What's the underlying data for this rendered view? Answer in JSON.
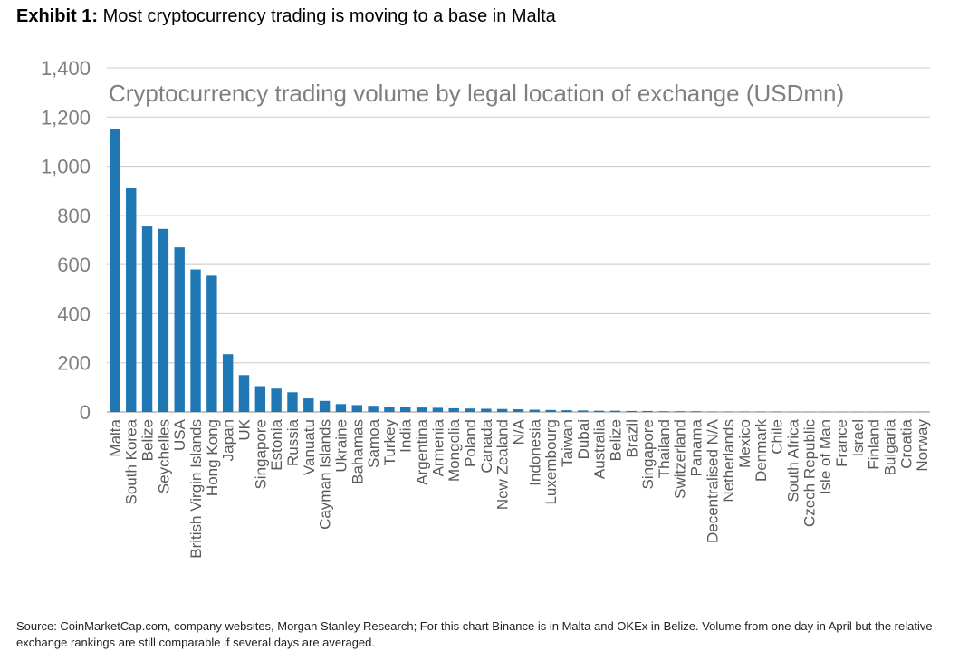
{
  "header": {
    "exhibit_label": "Exhibit 1:",
    "exhibit_title": "Most cryptocurrency trading is moving to a base in Malta"
  },
  "chart_data": {
    "type": "bar",
    "title": "Cryptocurrency trading volume by legal location of exchange (USDmn)",
    "xlabel": "",
    "ylabel": "",
    "ylim": [
      0,
      1400
    ],
    "yticks": [
      0,
      200,
      400,
      600,
      800,
      1000,
      1200,
      1400
    ],
    "ytick_labels": [
      "0",
      "200",
      "400",
      "600",
      "800",
      "1,000",
      "1,200",
      "1,400"
    ],
    "grid": true,
    "bar_color": "#1f77b4",
    "categories": [
      "Malta",
      "South Korea",
      "Belize",
      "Seychelles",
      "USA",
      "British Virgin Islands",
      "Hong Kong",
      "Japan",
      "UK",
      "Singapore",
      "Estonia",
      "Russia",
      "Vanuatu",
      "Cayman Islands",
      "Ukraine",
      "Bahamas",
      "Samoa",
      "Turkey",
      "India",
      "Argentina",
      "Armenia",
      "Mongolia",
      "Poland",
      "Canada",
      "New Zealand",
      "N/A",
      "Indonesia",
      "Luxembourg",
      "Taiwan",
      "Dubai",
      "Australia",
      "Belize",
      "Brazil",
      "Singapore",
      "Thailand",
      "Switzerland",
      "Panama",
      "Decentralised N/A",
      "Netherlands",
      "Mexico",
      "Denmark",
      "Chile",
      "South Africa",
      "Czech Republic",
      "Isle of Man",
      "France",
      "Israel",
      "Finland",
      "Bulgaria",
      "Croatia",
      "Norway"
    ],
    "values": [
      1150,
      910,
      755,
      745,
      670,
      580,
      555,
      235,
      150,
      105,
      95,
      80,
      55,
      45,
      32,
      28,
      25,
      22,
      20,
      18,
      17,
      15,
      14,
      13,
      12,
      11,
      9,
      8,
      7,
      6,
      5,
      5,
      4,
      4,
      3,
      3,
      3,
      2,
      2,
      2,
      2,
      2,
      1,
      1,
      1,
      1,
      1,
      1,
      1,
      1,
      1
    ]
  },
  "footer": {
    "source": "Source: CoinMarketCap.com, company websites, Morgan Stanley Research; For this chart Binance is in Malta and OKEx in Belize. Volume from one day in April but the relative exchange rankings are still comparable if several days are averaged."
  }
}
